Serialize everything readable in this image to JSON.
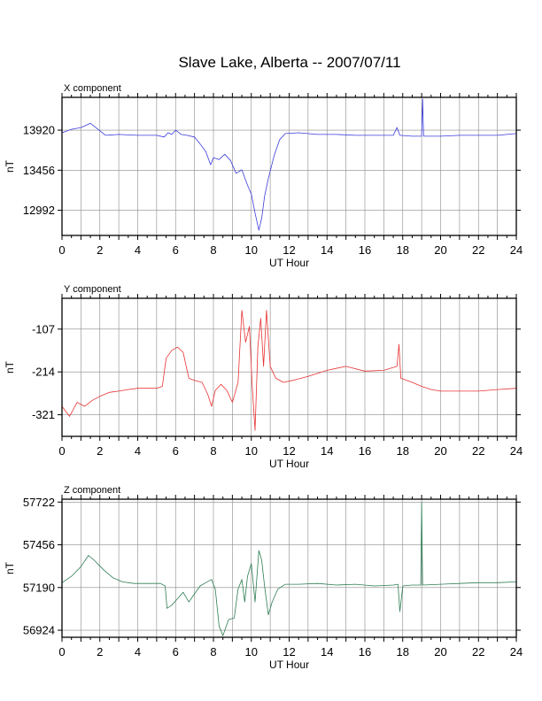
{
  "title": "Slave Lake, Alberta -- 2007/07/11",
  "chart_data": [
    {
      "type": "line",
      "panel_label": "X component",
      "xlabel": "UT Hour",
      "ylabel": "nT",
      "xlim": [
        0,
        24
      ],
      "ylim": [
        12700,
        14300
      ],
      "x_ticks": [
        0,
        2,
        4,
        6,
        8,
        10,
        12,
        14,
        16,
        18,
        20,
        22,
        24
      ],
      "y_ticks": [
        12992,
        13456,
        13920
      ],
      "grid": true,
      "color": "#3b3bdc",
      "points": [
        [
          0,
          13890
        ],
        [
          0.5,
          13930
        ],
        [
          1,
          13950
        ],
        [
          1.5,
          14000
        ],
        [
          1.9,
          13930
        ],
        [
          2.3,
          13860
        ],
        [
          3,
          13870
        ],
        [
          4,
          13860
        ],
        [
          5,
          13860
        ],
        [
          5.4,
          13840
        ],
        [
          5.6,
          13890
        ],
        [
          5.8,
          13870
        ],
        [
          6.0,
          13920
        ],
        [
          6.3,
          13870
        ],
        [
          6.6,
          13860
        ],
        [
          7.0,
          13840
        ],
        [
          7.3,
          13760
        ],
        [
          7.6,
          13670
        ],
        [
          7.85,
          13520
        ],
        [
          8.0,
          13600
        ],
        [
          8.3,
          13580
        ],
        [
          8.6,
          13640
        ],
        [
          8.9,
          13570
        ],
        [
          9.2,
          13420
        ],
        [
          9.5,
          13460
        ],
        [
          9.8,
          13280
        ],
        [
          10.0,
          13180
        ],
        [
          10.2,
          12960
        ],
        [
          10.4,
          12760
        ],
        [
          10.55,
          12900
        ],
        [
          10.7,
          13150
        ],
        [
          10.9,
          13360
        ],
        [
          11.2,
          13620
        ],
        [
          11.5,
          13810
        ],
        [
          11.8,
          13880
        ],
        [
          12.5,
          13890
        ],
        [
          13.5,
          13870
        ],
        [
          14.5,
          13870
        ],
        [
          15.5,
          13860
        ],
        [
          16.5,
          13860
        ],
        [
          17.5,
          13860
        ],
        [
          17.7,
          13950
        ],
        [
          17.85,
          13860
        ],
        [
          18.5,
          13850
        ],
        [
          19.0,
          13850
        ],
        [
          19.05,
          14280
        ],
        [
          19.1,
          13850
        ],
        [
          20,
          13850
        ],
        [
          21,
          13860
        ],
        [
          22,
          13860
        ],
        [
          23,
          13860
        ],
        [
          24,
          13880
        ]
      ]
    },
    {
      "type": "line",
      "panel_label": "Y component",
      "xlabel": "UT Hour",
      "ylabel": "nT",
      "xlim": [
        0,
        24
      ],
      "ylim": [
        -375,
        -30
      ],
      "x_ticks": [
        0,
        2,
        4,
        6,
        8,
        10,
        12,
        14,
        16,
        18,
        20,
        22,
        24
      ],
      "y_ticks": [
        -321,
        -214,
        -107
      ],
      "grid": true,
      "color": "#e83232",
      "points": [
        [
          0,
          -300
        ],
        [
          0.4,
          -325
        ],
        [
          0.8,
          -290
        ],
        [
          1.2,
          -300
        ],
        [
          1.6,
          -285
        ],
        [
          2,
          -275
        ],
        [
          2.5,
          -265
        ],
        [
          3,
          -262
        ],
        [
          3.5,
          -258
        ],
        [
          4,
          -255
        ],
        [
          4.5,
          -255
        ],
        [
          5,
          -255
        ],
        [
          5.3,
          -250
        ],
        [
          5.5,
          -180
        ],
        [
          5.8,
          -160
        ],
        [
          6.1,
          -152
        ],
        [
          6.4,
          -165
        ],
        [
          6.7,
          -230
        ],
        [
          7.0,
          -235
        ],
        [
          7.4,
          -240
        ],
        [
          7.7,
          -270
        ],
        [
          7.9,
          -300
        ],
        [
          8.1,
          -260
        ],
        [
          8.4,
          -245
        ],
        [
          8.7,
          -260
        ],
        [
          9.0,
          -290
        ],
        [
          9.3,
          -240
        ],
        [
          9.5,
          -60
        ],
        [
          9.7,
          -140
        ],
        [
          9.9,
          -100
        ],
        [
          10.05,
          -250
        ],
        [
          10.2,
          -360
        ],
        [
          10.35,
          -150
        ],
        [
          10.5,
          -80
        ],
        [
          10.65,
          -200
        ],
        [
          10.8,
          -60
        ],
        [
          11.0,
          -200
        ],
        [
          11.3,
          -230
        ],
        [
          11.7,
          -240
        ],
        [
          12.2,
          -235
        ],
        [
          13,
          -225
        ],
        [
          14,
          -210
        ],
        [
          15,
          -200
        ],
        [
          16,
          -212
        ],
        [
          17,
          -210
        ],
        [
          17.7,
          -200
        ],
        [
          17.8,
          -145
        ],
        [
          17.9,
          -230
        ],
        [
          18.5,
          -240
        ],
        [
          19,
          -250
        ],
        [
          19.5,
          -258
        ],
        [
          20,
          -262
        ],
        [
          21,
          -262
        ],
        [
          22,
          -262
        ],
        [
          23,
          -258
        ],
        [
          24,
          -255
        ]
      ]
    },
    {
      "type": "line",
      "panel_label": "Z component",
      "xlabel": "UT Hour",
      "ylabel": "nT",
      "xlim": [
        0,
        24
      ],
      "ylim": [
        56880,
        57740
      ],
      "x_ticks": [
        0,
        2,
        4,
        6,
        8,
        10,
        12,
        14,
        16,
        18,
        20,
        22,
        24
      ],
      "y_ticks": [
        56924,
        57190,
        57456,
        57722
      ],
      "grid": true,
      "color": "#2e7d54",
      "points": [
        [
          0,
          57220
        ],
        [
          0.5,
          57260
        ],
        [
          1,
          57320
        ],
        [
          1.4,
          57390
        ],
        [
          1.7,
          57360
        ],
        [
          2.2,
          57300
        ],
        [
          2.7,
          57250
        ],
        [
          3.2,
          57225
        ],
        [
          3.8,
          57215
        ],
        [
          4.5,
          57215
        ],
        [
          5.2,
          57215
        ],
        [
          5.45,
          57200
        ],
        [
          5.55,
          57060
        ],
        [
          5.8,
          57080
        ],
        [
          6.1,
          57120
        ],
        [
          6.4,
          57160
        ],
        [
          6.7,
          57100
        ],
        [
          7.0,
          57150
        ],
        [
          7.3,
          57200
        ],
        [
          7.6,
          57220
        ],
        [
          7.9,
          57240
        ],
        [
          8.1,
          57180
        ],
        [
          8.3,
          56950
        ],
        [
          8.5,
          56890
        ],
        [
          8.8,
          56990
        ],
        [
          9.1,
          57000
        ],
        [
          9.3,
          57180
        ],
        [
          9.5,
          57240
        ],
        [
          9.65,
          57100
        ],
        [
          9.8,
          57260
        ],
        [
          10.0,
          57340
        ],
        [
          10.2,
          57100
        ],
        [
          10.4,
          57420
        ],
        [
          10.55,
          57360
        ],
        [
          10.7,
          57200
        ],
        [
          10.9,
          57020
        ],
        [
          11.1,
          57100
        ],
        [
          11.4,
          57180
        ],
        [
          11.8,
          57210
        ],
        [
          12.5,
          57210
        ],
        [
          13.5,
          57215
        ],
        [
          14.5,
          57205
        ],
        [
          15.5,
          57210
        ],
        [
          16.5,
          57200
        ],
        [
          17.5,
          57205
        ],
        [
          17.75,
          57210
        ],
        [
          17.85,
          57040
        ],
        [
          18.0,
          57200
        ],
        [
          18.5,
          57205
        ],
        [
          18.95,
          57205
        ],
        [
          19.0,
          57720
        ],
        [
          19.05,
          57205
        ],
        [
          20,
          57210
        ],
        [
          21,
          57215
        ],
        [
          22,
          57220
        ],
        [
          23,
          57220
        ],
        [
          24,
          57225
        ]
      ]
    }
  ]
}
